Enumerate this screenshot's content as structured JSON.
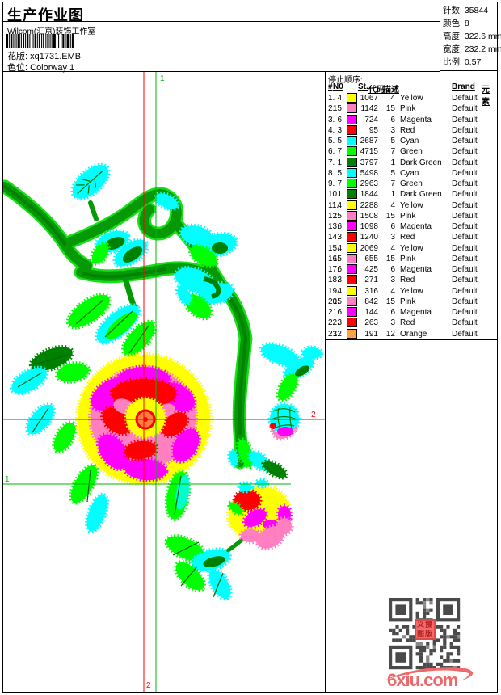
{
  "header": {
    "title": "生产作业图",
    "studio": "Wilcom(汇京)装饰工作室",
    "design_label": "花版:",
    "design_value": "xq1731.EMB",
    "colorway_label": "色位:",
    "colorway_value": "Colorway 1"
  },
  "stats": {
    "lines": [
      {
        "label": "针数:",
        "value": "35844"
      },
      {
        "label": "颜色:",
        "value": "8"
      },
      {
        "label": "高度:",
        "value": "322.6 mm"
      },
      {
        "label": "宽度:",
        "value": "232.2 mm"
      },
      {
        "label": "比例:",
        "value": "0.57"
      }
    ]
  },
  "stop_sequence": {
    "title": "停止顺序:",
    "columns": [
      "#",
      "N0",
      "St.",
      "代码",
      "描述",
      "Brand",
      "元素"
    ],
    "rows": [
      {
        "seq": "1.",
        "n0": "4",
        "color": "#FFFF00",
        "st": "1067",
        "code": "4",
        "desc": "Yellow",
        "brand": "Default"
      },
      {
        "seq": "2.",
        "n0": "15",
        "color": "#FF7FC0",
        "st": "1142",
        "code": "15",
        "desc": "Pink",
        "brand": "Default"
      },
      {
        "seq": "3.",
        "n0": "6",
        "color": "#FF00FF",
        "st": "724",
        "code": "6",
        "desc": "Magenta",
        "brand": "Default"
      },
      {
        "seq": "4.",
        "n0": "3",
        "color": "#FF0000",
        "st": "95",
        "code": "3",
        "desc": "Red",
        "brand": "Default"
      },
      {
        "seq": "5.",
        "n0": "5",
        "color": "#00FFFF",
        "st": "2687",
        "code": "5",
        "desc": "Cyan",
        "brand": "Default"
      },
      {
        "seq": "6.",
        "n0": "7",
        "color": "#00FF00",
        "st": "4715",
        "code": "7",
        "desc": "Green",
        "brand": "Default"
      },
      {
        "seq": "7.",
        "n0": "1",
        "color": "#008000",
        "st": "3797",
        "code": "1",
        "desc": "Dark Green",
        "brand": "Default"
      },
      {
        "seq": "8.",
        "n0": "5",
        "color": "#00FFFF",
        "st": "5498",
        "code": "5",
        "desc": "Cyan",
        "brand": "Default"
      },
      {
        "seq": "9.",
        "n0": "7",
        "color": "#00FF00",
        "st": "2963",
        "code": "7",
        "desc": "Green",
        "brand": "Default"
      },
      {
        "seq": "10.",
        "n0": "1",
        "color": "#008000",
        "st": "1844",
        "code": "1",
        "desc": "Dark Green",
        "brand": "Default"
      },
      {
        "seq": "11.",
        "n0": "4",
        "color": "#FFFF00",
        "st": "2288",
        "code": "4",
        "desc": "Yellow",
        "brand": "Default"
      },
      {
        "seq": "12.",
        "n0": "15",
        "color": "#FF7FC0",
        "st": "1508",
        "code": "15",
        "desc": "Pink",
        "brand": "Default"
      },
      {
        "seq": "13.",
        "n0": "6",
        "color": "#FF00FF",
        "st": "1098",
        "code": "6",
        "desc": "Magenta",
        "brand": "Default"
      },
      {
        "seq": "14.",
        "n0": "3",
        "color": "#FF0000",
        "st": "1240",
        "code": "3",
        "desc": "Red",
        "brand": "Default"
      },
      {
        "seq": "15.",
        "n0": "4",
        "color": "#FFFF00",
        "st": "2069",
        "code": "4",
        "desc": "Yellow",
        "brand": "Default"
      },
      {
        "seq": "16.",
        "n0": "15",
        "color": "#FF7FC0",
        "st": "655",
        "code": "15",
        "desc": "Pink",
        "brand": "Default"
      },
      {
        "seq": "17.",
        "n0": "6",
        "color": "#FF00FF",
        "st": "425",
        "code": "6",
        "desc": "Magenta",
        "brand": "Default"
      },
      {
        "seq": "18.",
        "n0": "3",
        "color": "#FF0000",
        "st": "271",
        "code": "3",
        "desc": "Red",
        "brand": "Default"
      },
      {
        "seq": "19.",
        "n0": "4",
        "color": "#FFFF00",
        "st": "316",
        "code": "4",
        "desc": "Yellow",
        "brand": "Default"
      },
      {
        "seq": "20.",
        "n0": "15",
        "color": "#FF7FC0",
        "st": "842",
        "code": "15",
        "desc": "Pink",
        "brand": "Default"
      },
      {
        "seq": "21.",
        "n0": "6",
        "color": "#FF00FF",
        "st": "144",
        "code": "6",
        "desc": "Magenta",
        "brand": "Default"
      },
      {
        "seq": "22.",
        "n0": "3",
        "color": "#FF0000",
        "st": "263",
        "code": "3",
        "desc": "Red",
        "brand": "Default"
      },
      {
        "seq": "23.",
        "n0": "12",
        "color": "#FFA040",
        "st": "191",
        "code": "12",
        "desc": "Orange",
        "brand": "Default"
      }
    ]
  },
  "markers": {
    "green_vertical_label": "1",
    "green_horizontal_label": "1",
    "red_horizontal_label": "2",
    "red_vertical_label": "2"
  },
  "footer": {
    "watermark": "6xiu.com",
    "stamp_line1": "义搜",
    "stamp_line2": "图版"
  },
  "palette": {
    "yellow": "#FFFF00",
    "pink": "#FF7FC0",
    "magenta": "#FF00FF",
    "red": "#FF0000",
    "cyan": "#00FFFF",
    "green": "#00FF00",
    "dark_green": "#008000",
    "orange": "#FFA040",
    "marker_red": "#FF0000",
    "marker_green": "#00B400",
    "qr_gray": "#4a4a4a",
    "watermark_red": "#ee6a6a"
  }
}
